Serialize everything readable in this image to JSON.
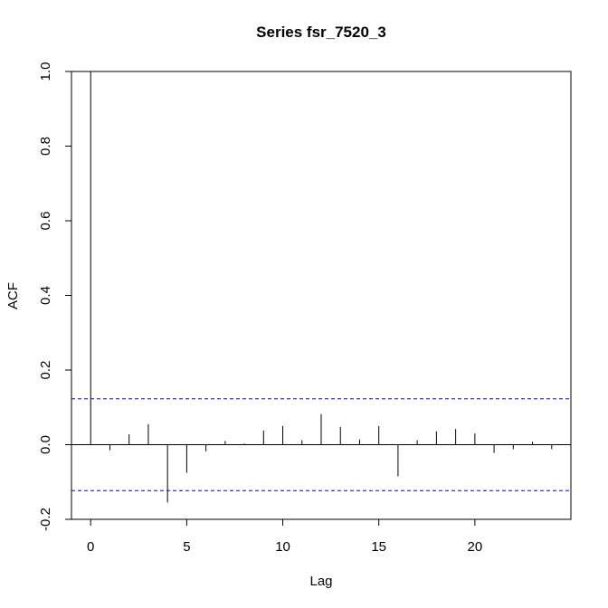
{
  "chart_data": {
    "type": "bar",
    "title": "Series  fsr_7520_3",
    "xlabel": "Lag",
    "ylabel": "ACF",
    "xlim": [
      -1,
      25
    ],
    "ylim": [
      -0.2,
      1.0
    ],
    "x_ticks": [
      0,
      5,
      10,
      15,
      20
    ],
    "y_ticks": [
      -0.2,
      0.0,
      0.2,
      0.4,
      0.6,
      0.8,
      1.0
    ],
    "x_tick_labels": [
      "0",
      "5",
      "10",
      "15",
      "20"
    ],
    "y_tick_labels": [
      "-0.2",
      "0.0",
      "0.2",
      "0.4",
      "0.6",
      "0.8",
      "1.0"
    ],
    "lags": [
      0,
      1,
      2,
      3,
      4,
      5,
      6,
      7,
      8,
      9,
      10,
      11,
      12,
      13,
      14,
      15,
      16,
      17,
      18,
      19,
      20,
      21,
      22,
      23,
      24
    ],
    "acf": [
      1.0,
      -0.015,
      0.028,
      0.055,
      -0.155,
      -0.075,
      -0.018,
      0.01,
      0.003,
      0.038,
      0.05,
      0.012,
      0.082,
      0.048,
      0.014,
      0.05,
      -0.085,
      0.012,
      0.036,
      0.042,
      0.03,
      -0.022,
      -0.012,
      0.008,
      -0.012
    ],
    "confidence_bound": 0.123,
    "grid": false,
    "colors": {
      "bars": "#000000",
      "confidence": "#0000ff"
    }
  }
}
